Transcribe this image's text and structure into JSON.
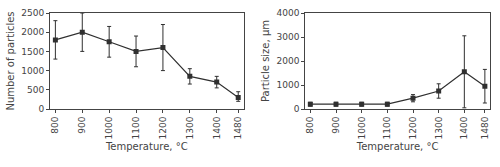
{
  "chart_data": [
    {
      "type": "line",
      "x": [
        800,
        900,
        1000,
        1100,
        1200,
        1300,
        1400,
        1480
      ],
      "series": [
        {
          "color": "#303030",
          "marker": "square",
          "line_style": "solid",
          "values": [
            1800,
            2000,
            1750,
            1500,
            1600,
            850,
            700,
            300
          ],
          "yerr_lo": [
            500,
            500,
            400,
            400,
            600,
            200,
            150,
            100
          ],
          "yerr_hi": [
            500,
            500,
            400,
            400,
            600,
            200,
            150,
            150
          ]
        }
      ],
      "xlabel": "Temperature, °C",
      "ylabel": "Number of particles",
      "xlim": [
        780,
        1500
      ],
      "xticks": [
        800,
        900,
        1000,
        1100,
        1200,
        1300,
        1400,
        1480
      ],
      "ylim": [
        0,
        2500
      ],
      "yticks": [
        0,
        500,
        1000,
        1500,
        2000,
        2500
      ],
      "grid": false
    },
    {
      "type": "line",
      "x": [
        800,
        900,
        1000,
        1100,
        1200,
        1300,
        1400,
        1480
      ],
      "series": [
        {
          "color": "#303030",
          "marker": "square",
          "line_style": "solid",
          "values": [
            200,
            200,
            200,
            200,
            450,
            750,
            1550,
            950
          ],
          "yerr_lo": [
            80,
            80,
            80,
            80,
            150,
            300,
            1500,
            700
          ],
          "yerr_hi": [
            80,
            80,
            80,
            80,
            150,
            300,
            1500,
            700
          ]
        }
      ],
      "xlabel": "Temperature, °C",
      "ylabel": "Particle size, μm",
      "xlim": [
        780,
        1500
      ],
      "xticks": [
        800,
        900,
        1000,
        1100,
        1200,
        1300,
        1400,
        1480
      ],
      "ylim": [
        0,
        4000
      ],
      "yticks": [
        0,
        1000,
        2000,
        3000,
        4000
      ],
      "grid": false
    }
  ]
}
